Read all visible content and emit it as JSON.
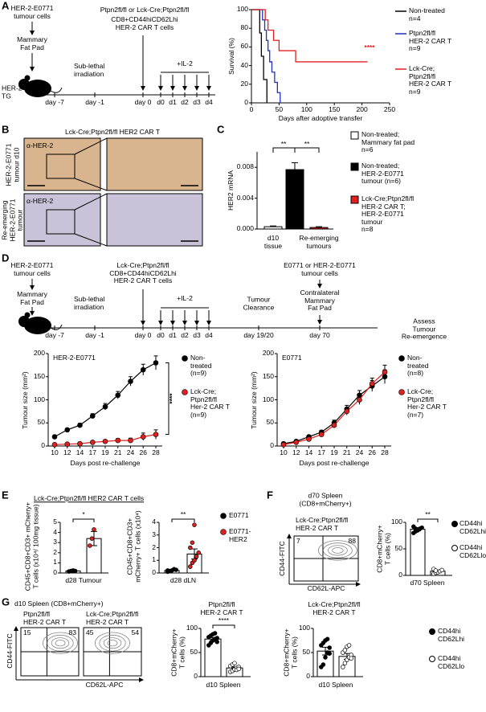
{
  "panel_labels": [
    "A",
    "B",
    "C",
    "D",
    "E",
    "F",
    "G"
  ],
  "a": {
    "schematic": {
      "cells": "HER-2-E0771\ntumour cells",
      "site": "Mammary\nFat Pad",
      "mouse": "HER-2\nTG",
      "car": "Ptpn2fl/fl or Lck-Cre;Ptpn2fl/fl",
      "car_phenotype": "CD8+CD44hiCD62Lhi\nHER-2 CAR T cells",
      "irradiation": "Sub-lethal\nirradiation",
      "il2": "+IL-2",
      "days": [
        "day -7",
        "day -1",
        "day 0",
        "d0",
        "d1",
        "d2",
        "d3",
        "d4"
      ]
    },
    "survival": {
      "type": "line",
      "step": true,
      "xlabel": "Days after adoptive transfer",
      "ylabel": "Survival (%)",
      "xlim": [
        0,
        250
      ],
      "xticks": [
        0,
        50,
        100,
        150,
        200,
        250
      ],
      "ylim": [
        0,
        100
      ],
      "yticks": [
        0,
        20,
        40,
        60,
        80,
        100
      ],
      "annotation": "****",
      "series": [
        {
          "name": "Non-treated\nn=4",
          "color": "#000000",
          "x": [
            0,
            15,
            18,
            22,
            28
          ],
          "values": [
            100,
            75,
            50,
            25,
            0
          ]
        },
        {
          "name": "Ptpn2fl/fl\nHER-2 CAR T\nn=9",
          "color": "#1f2fbf",
          "x": [
            0,
            20,
            24,
            27,
            30,
            33,
            37,
            42,
            47,
            52
          ],
          "values": [
            100,
            89,
            78,
            67,
            56,
            44,
            33,
            22,
            11,
            0
          ]
        },
        {
          "name": "Lck-Cre;\nPtpn2fl/fl\nHER-2 CAR T\nn=9",
          "color": "#e02020",
          "x": [
            0,
            25,
            30,
            40,
            50,
            80,
            210
          ],
          "values": [
            100,
            89,
            78,
            67,
            56,
            44,
            44
          ]
        }
      ]
    }
  },
  "b": {
    "title": "Lck-Cre;Ptpn2fl/fl HER2 CAR T",
    "stain": [
      "α-HER-2",
      "α-HER-2"
    ],
    "rows": [
      "HER-2-E0771\ntumour d10",
      "Re-emerging\nHER-2-E0771\ntumour"
    ]
  },
  "c": {
    "type": "bar",
    "ylabel": "HER2 mRNA",
    "ylim": [
      0,
      0.01
    ],
    "yticks": [
      {
        "value": 0,
        "label": "0.000"
      },
      {
        "value": 0.004,
        "label": "0.004"
      },
      {
        "value": 0.008,
        "label": "0.008"
      }
    ],
    "groups": [
      "d10\ntissue",
      "Re-emerging\ntumours"
    ],
    "annotations": [
      "**",
      "**"
    ],
    "series": [
      {
        "name": "Non-treated;\nMammary fat pad\nn=6",
        "color": "#ffffff",
        "value": 0.0003,
        "error": 0.0001
      },
      {
        "name": "Non-treated;\nHER-2-E0771\ntumour (n=6)",
        "color": "#000000",
        "value": 0.0077,
        "error": 0.0009
      },
      {
        "name": "Lck-Cre;Ptpn2fl/fl\nHER-2 CAR T;\nHER-2-E0771\ntumour\nn=8",
        "color": "#e02020",
        "value": 0.0002,
        "error": 0.0001
      }
    ]
  },
  "d": {
    "schematic": {
      "cells": "HER-2-E0771\ntumour cells",
      "site": "Mammary\nFat Pad",
      "car": "Lck-Cre;Ptpn2fl/fl\nCD8+CD44hiCD62Lhi\nHER-2 CAR T cells",
      "irradiation": "Sub-lethal\nirradiation",
      "il2": "+IL-2",
      "clearance": "Tumour\nClearance",
      "rechallenge": "E0771 or HER-2-E0771\ntumour cells",
      "contralateral": "Contralateral\nMammary\nFat Pad",
      "assess": "Assess\nTumour\nRe-emergence",
      "days": [
        "day -7",
        "day -1",
        "day 0",
        "d0",
        "d1",
        "d2",
        "d3",
        "d4",
        "day 19/20",
        "day 70"
      ]
    },
    "charts": [
      {
        "type": "line",
        "title": "HER-2-E0771",
        "xlabel": "Days post re-challenge",
        "ylabel": "Tumour size (mm²)",
        "categories": [
          10,
          12,
          14,
          17,
          19,
          21,
          24,
          26,
          28
        ],
        "ylim": [
          0,
          200
        ],
        "yticks": [
          0,
          50,
          100,
          150,
          200
        ],
        "annotation": "****",
        "series": [
          {
            "name": "Non-\ntreated\n(n=9)",
            "color": "#000000",
            "values": [
              20,
              35,
              45,
              65,
              85,
              110,
              140,
              165,
              180
            ],
            "errors": [
              2,
              3,
              4,
              5,
              7,
              8,
              10,
              12,
              15
            ]
          },
          {
            "name": "Lck-Cre;\nPtpn2fl/fl\nHer-2 CAR T\n(n=9)",
            "color": "#e02020",
            "values": [
              3,
              4,
              5,
              8,
              10,
              12,
              12,
              20,
              25
            ],
            "errors": [
              1,
              1,
              1,
              2,
              3,
              4,
              5,
              8,
              10
            ]
          }
        ]
      },
      {
        "type": "line",
        "title": "E0771",
        "xlabel": "Days post re-challenge",
        "ylabel": "Tumour size (mm²)",
        "categories": [
          10,
          12,
          14,
          17,
          19,
          21,
          24,
          26,
          28
        ],
        "ylim": [
          0,
          200
        ],
        "yticks": [
          0,
          50,
          100,
          150,
          200
        ],
        "series": [
          {
            "name": "Non-\ntreated\n(n=8)",
            "color": "#000000",
            "values": [
              5,
              10,
              20,
              30,
              50,
              80,
              110,
              130,
              150
            ],
            "errors": [
              1,
              2,
              3,
              4,
              6,
              8,
              10,
              12,
              15
            ]
          },
          {
            "name": "Lck-Cre;\nPtpn2fl/fl\nHer-2 CAR T\n(n=7)",
            "color": "#e02020",
            "values": [
              3,
              8,
              15,
              25,
              45,
              75,
              100,
              135,
              160
            ],
            "errors": [
              1,
              2,
              3,
              4,
              6,
              8,
              10,
              12,
              15
            ]
          }
        ]
      }
    ]
  },
  "e": {
    "title": "Lck-Cre;Ptpn2fl/fl HER2 CAR T cells",
    "charts": [
      {
        "type": "bar",
        "ylabel": "CD45+CD8+CD3+ mCherry+\nT cells (x10⁴/ 100mg tissue)",
        "xlabel": "d28 Tumour",
        "ylim": [
          0,
          5
        ],
        "yticks": [
          0,
          1,
          2,
          3,
          4,
          5
        ],
        "annotation": "*",
        "series": [
          {
            "name": "E0771",
            "color": "#000000",
            "value": 0.2,
            "error": 0.05,
            "points": [
              0.15,
              0.2,
              0.25,
              0.2
            ]
          },
          {
            "name": "E0771-\nHER2",
            "color": "#e02020",
            "value": 3.4,
            "error": 0.7,
            "points": [
              2.7,
              3.4,
              4.3
            ]
          }
        ]
      },
      {
        "type": "bar",
        "ylabel": "CD45+CD8+CD3+\nmCherry+ T cells (x10⁴)",
        "xlabel": "d28 dLN",
        "ylim": [
          0,
          4
        ],
        "yticks": [
          0,
          1,
          2,
          3,
          4
        ],
        "annotation": "**",
        "series": [
          {
            "name": "E0771",
            "color": "#000000",
            "value": 0.2,
            "error": 0.05,
            "points": [
              0.1,
              0.15,
              0.2,
              0.3,
              0.25,
              0.2,
              0.15
            ]
          },
          {
            "name": "E0771-\nHER2",
            "color": "#e02020",
            "value": 1.5,
            "error": 0.4,
            "points": [
              0.5,
              0.8,
              1.0,
              1.3,
              1.6,
              2.0,
              2.4,
              3.8
            ]
          }
        ]
      }
    ]
  },
  "f": {
    "flow": {
      "title": "d70 Spleen\n(CD8+mCherry+)",
      "label": "Lck-Cre;Ptpn2fl/fl\nHER-2 CAR T",
      "quadrants": [
        7,
        88
      ],
      "ylabel": "CD44-FITC",
      "xlabel": "CD62L-APC"
    },
    "chart": {
      "type": "bar",
      "ylabel": "CD8+mCherry+\nT cells (%)",
      "xlabel": "d70 Spleen",
      "ylim": [
        0,
        100
      ],
      "yticks": [
        0,
        50,
        100
      ],
      "annotation": "**",
      "series": [
        {
          "name": "CD44hi\nCD62Lhi",
          "color": "#000000",
          "marker": "filled",
          "value": 87,
          "error": 3,
          "points": [
            80,
            83,
            85,
            88,
            90,
            92,
            88
          ]
        },
        {
          "name": "CD44hi\nCD62Llo",
          "color": "#000000",
          "marker": "open",
          "value": 8,
          "error": 2,
          "points": [
            3,
            5,
            6,
            8,
            10,
            12,
            9
          ]
        }
      ]
    }
  },
  "g": {
    "flow_title": "d10 Spleen (CD8+mCherry+)",
    "flow_ylabel": "CD44-FITC",
    "flow_xlabel": "CD62L-APC",
    "flows": [
      {
        "label": "Ptpn2fl/fl\nHER-2 CAR T",
        "quadrants": [
          15,
          83
        ]
      },
      {
        "label": "Lck-Cre;Ptpn2fl/fl\nHER-2 CAR T",
        "quadrants": [
          45,
          54
        ]
      }
    ],
    "charts": [
      {
        "type": "bar",
        "title": "Ptpn2fl/fl\nHER-2 CAR T",
        "ylabel": "CD8+mCherry+\nT cells (%)",
        "xlabel": "d10 Spleen",
        "ylim": [
          0,
          100
        ],
        "yticks": [
          0,
          50,
          100
        ],
        "annotation": "****",
        "series": [
          {
            "name": "CD44hi\nCD62Lhi",
            "color": "#000000",
            "marker": "filled",
            "value": 78,
            "error": 3,
            "points": [
              65,
              70,
              75,
              78,
              80,
              82,
              85,
              88,
              90,
              72
            ]
          },
          {
            "name": "CD44hi\nCD62Llo",
            "color": "#000000",
            "marker": "open",
            "value": 18,
            "error": 2,
            "points": [
              10,
              12,
              15,
              18,
              20,
              22,
              25,
              28,
              14,
              16
            ]
          }
        ]
      },
      {
        "type": "bar",
        "title": "Lck-Cre;Ptpn2fl/fl\nHER-2 CAR T",
        "ylabel": "CD8+mCherry+\nT cells (%)",
        "xlabel": "d10 Spleen",
        "ylim": [
          0,
          100
        ],
        "yticks": [
          0,
          50,
          100
        ],
        "series": [
          {
            "name": "CD44hi\nCD62Lhi",
            "color": "#000000",
            "marker": "filled",
            "value": 53,
            "error": 8,
            "points": [
              20,
              25,
              40,
              50,
              60,
              65,
              70,
              75,
              78,
              48
            ]
          },
          {
            "name": "CD44hi\nCD62Llo",
            "color": "#000000",
            "marker": "open",
            "value": 42,
            "error": 6,
            "points": [
              20,
              28,
              35,
              40,
              45,
              50,
              55,
              62,
              65,
              38
            ]
          }
        ]
      }
    ]
  }
}
